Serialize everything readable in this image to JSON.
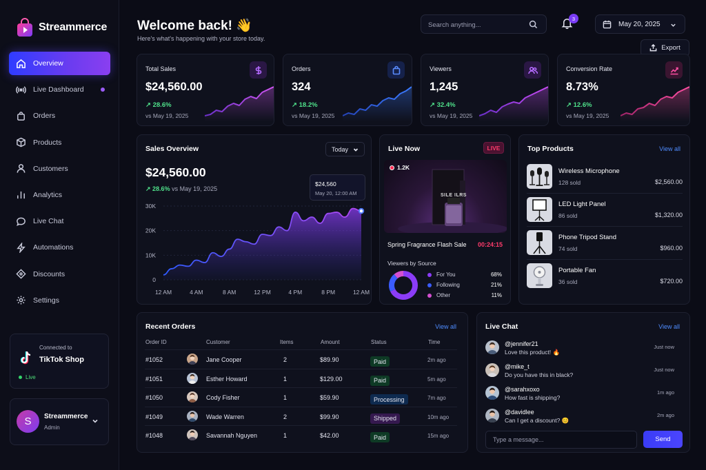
{
  "brand": {
    "name": "Streammerce"
  },
  "nav": [
    {
      "label": "Overview",
      "icon": "home-icon",
      "active": true
    },
    {
      "label": "Live Dashboard",
      "icon": "live-icon"
    },
    {
      "label": "Orders",
      "icon": "bag-icon"
    },
    {
      "label": "Products",
      "icon": "box-icon"
    },
    {
      "label": "Customers",
      "icon": "user-icon"
    },
    {
      "label": "Analytics",
      "icon": "bar-chart-icon"
    },
    {
      "label": "Live Chat",
      "icon": "chat-icon"
    },
    {
      "label": "Automations",
      "icon": "bolt-icon"
    },
    {
      "label": "Discounts",
      "icon": "tag-icon"
    },
    {
      "label": "Settings",
      "icon": "gear-icon"
    }
  ],
  "connection": {
    "caption": "Connected to",
    "platform": "TikTok Shop",
    "status": "Live"
  },
  "account": {
    "initial": "S",
    "name": "Streammerce",
    "role": "Admin"
  },
  "header": {
    "title": "Welcome back! 👋",
    "subtitle": "Here's what's happening with your store today.",
    "search_placeholder": "Search anything...",
    "notifications": "3",
    "date": "May 20, 2025",
    "export_label": "Export"
  },
  "kpis": [
    {
      "title": "Total Sales",
      "value": "$24,560.00",
      "change": "28.6%",
      "vs": "vs May 19, 2025",
      "icon": "dollar-icon",
      "accent": "#a855f7"
    },
    {
      "title": "Orders",
      "value": "324",
      "change": "18.2%",
      "vs": "vs May 19, 2025",
      "icon": "bag-icon",
      "accent": "#3b82f6"
    },
    {
      "title": "Viewers",
      "value": "1,245",
      "change": "32.4%",
      "vs": "vs May 19, 2025",
      "icon": "users-icon",
      "accent": "#a855f7"
    },
    {
      "title": "Conversion Rate",
      "value": "8.73%",
      "change": "12.6%",
      "vs": "vs May 19, 2025",
      "icon": "trend-icon",
      "accent": "#ec4899"
    }
  ],
  "sales_overview": {
    "title": "Sales Overview",
    "range": "Today",
    "total": "$24,560.00",
    "change": "28.6%",
    "vs": "vs May 19, 2025",
    "tooltip_value": "$24,560",
    "tooltip_time": "May 20, 12:00 AM"
  },
  "chart_data": {
    "type": "area",
    "x": [
      "12 AM",
      "1 AM",
      "2 AM",
      "3 AM",
      "4 AM",
      "5 AM",
      "6 AM",
      "7 AM",
      "8 AM",
      "9 AM",
      "10 AM",
      "11 AM",
      "12 PM",
      "1 PM",
      "2 PM",
      "3 PM",
      "4 PM",
      "5 PM",
      "6 PM",
      "7 PM",
      "8 PM",
      "9 PM",
      "10 PM",
      "11 PM",
      "12 AM"
    ],
    "tick_labels": [
      "12 AM",
      "4 AM",
      "8 AM",
      "12 PM",
      "4 PM",
      "8 PM",
      "12 AM"
    ],
    "values": [
      2000,
      4500,
      6000,
      5500,
      8000,
      7000,
      11000,
      9500,
      12500,
      16500,
      15500,
      14500,
      18500,
      18000,
      21500,
      20000,
      27500,
      24000,
      25500,
      23000,
      27000,
      27500,
      25500,
      29000,
      28000
    ],
    "ylim": [
      0,
      30000
    ],
    "yticks": [
      "0",
      "10K",
      "20K",
      "30K"
    ],
    "grid": true
  },
  "live_now": {
    "title": "Live Now",
    "badge": "LIVE",
    "viewers": "1.2K",
    "stream_title": "Spring Fragrance Flash Sale",
    "timer": "00:24:15",
    "product_box_text": "SILE ILRS",
    "sources_title": "Viewers by Source",
    "sources": [
      {
        "name": "For You",
        "percent": "68%",
        "value": 68,
        "color": "#8b3cf7"
      },
      {
        "name": "Following",
        "percent": "21%",
        "value": 21,
        "color": "#3b5cff"
      },
      {
        "name": "Other",
        "percent": "11%",
        "value": 11,
        "color": "#d44fd1"
      }
    ]
  },
  "top_products": {
    "title": "Top Products",
    "view_all": "View all",
    "items": [
      {
        "name": "Wireless Microphone",
        "sold": "128 sold",
        "revenue": "$2,560.00"
      },
      {
        "name": "LED Light Panel",
        "sold": "86 sold",
        "revenue": "$1,320.00"
      },
      {
        "name": "Phone Tripod Stand",
        "sold": "74 sold",
        "revenue": "$960.00"
      },
      {
        "name": "Portable Fan",
        "sold": "36 sold",
        "revenue": "$720.00"
      }
    ]
  },
  "recent_orders": {
    "title": "Recent Orders",
    "view_all": "View all",
    "columns": [
      "Order ID",
      "Customer",
      "Items",
      "Amount",
      "Status",
      "Time"
    ],
    "rows": [
      {
        "id": "#1052",
        "customer": "Jane Cooper",
        "items": "2",
        "amount": "$89.90",
        "status": "Paid",
        "time": "2m ago"
      },
      {
        "id": "#1051",
        "customer": "Esther Howard",
        "items": "1",
        "amount": "$129.00",
        "status": "Paid",
        "time": "5m ago"
      },
      {
        "id": "#1050",
        "customer": "Cody Fisher",
        "items": "1",
        "amount": "$59.90",
        "status": "Processing",
        "time": "7m ago"
      },
      {
        "id": "#1049",
        "customer": "Wade Warren",
        "items": "2",
        "amount": "$99.90",
        "status": "Shipped",
        "time": "10m ago"
      },
      {
        "id": "#1048",
        "customer": "Savannah Nguyen",
        "items": "1",
        "amount": "$42.00",
        "status": "Paid",
        "time": "15m ago"
      }
    ]
  },
  "live_chat": {
    "title": "Live Chat",
    "view_all": "View all",
    "messages": [
      {
        "user": "@jennifer21",
        "text": "Love this product! 🔥",
        "time": "Just now"
      },
      {
        "user": "@mike_t",
        "text": "Do you have this in black?",
        "time": "Just now"
      },
      {
        "user": "@sarahxoxo",
        "text": "How fast is shipping?",
        "time": "1m ago"
      },
      {
        "user": "@davidlee",
        "text": "Can I get a discount? 😊",
        "time": "2m ago"
      }
    ],
    "input_placeholder": "Type a message...",
    "send_label": "Send"
  }
}
